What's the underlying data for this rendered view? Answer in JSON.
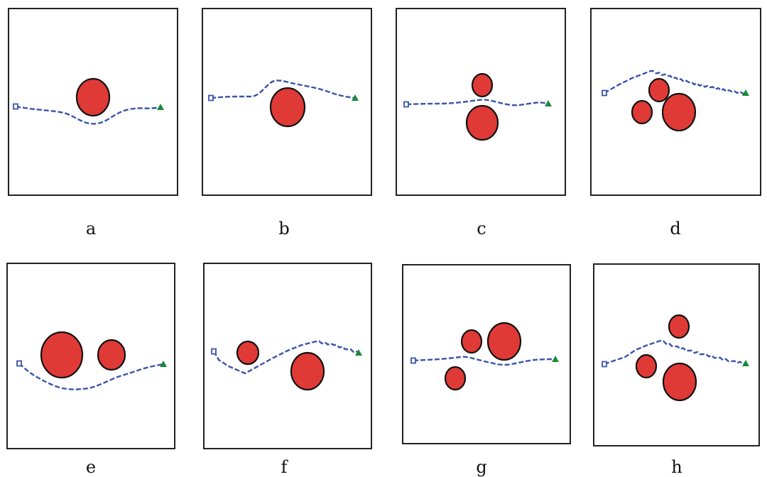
{
  "colors": {
    "obstacle_fill": "#e03a36",
    "obstacle_stroke": "#111111",
    "path": "#3a54a8",
    "start_marker": "#3a54a8",
    "goal_marker": "#1a8a3a",
    "frame": "#222222",
    "background": "#ffffff"
  },
  "icons": {
    "start": "square-outline-icon",
    "goal": "triangle-icon",
    "obstacle": "circle-icon"
  },
  "panels": [
    {
      "id": "a",
      "label": "a"
    },
    {
      "id": "b",
      "label": "b"
    },
    {
      "id": "c",
      "label": "c"
    },
    {
      "id": "d",
      "label": "d"
    },
    {
      "id": "e",
      "label": "e"
    },
    {
      "id": "f",
      "label": "f"
    },
    {
      "id": "g",
      "label": "g"
    },
    {
      "id": "h",
      "label": "h"
    }
  ]
}
